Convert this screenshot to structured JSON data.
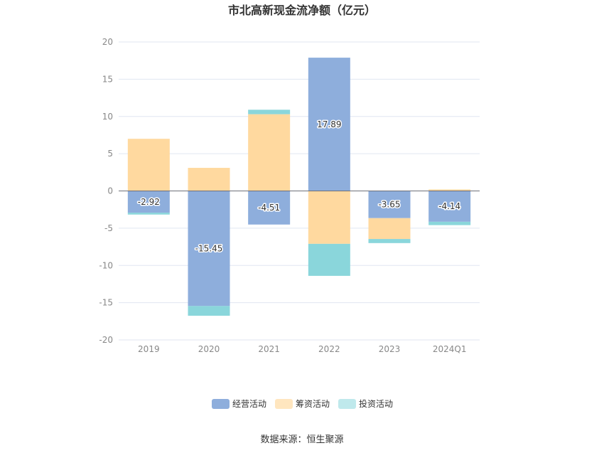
{
  "chart_data": {
    "type": "bar",
    "stacked": true,
    "title": "市北高新现金流净额（亿元）",
    "categories": [
      "2019",
      "2020",
      "2021",
      "2022",
      "2023",
      "2024Q1"
    ],
    "series": [
      {
        "name": "经营活动",
        "color": "#8eaedc",
        "values": [
          -2.92,
          -15.45,
          -4.51,
          17.89,
          -3.65,
          -4.14
        ],
        "show_labels": true
      },
      {
        "name": "筹资活动",
        "color": "#ffd99f",
        "values": [
          7.0,
          3.1,
          10.3,
          -7.1,
          -2.8,
          0.2
        ],
        "show_labels": false
      },
      {
        "name": "投资活动",
        "color": "#8ad6db",
        "values": [
          -0.25,
          -1.3,
          0.6,
          -4.3,
          -0.55,
          -0.45
        ],
        "show_labels": false
      }
    ],
    "ylim": [
      -20,
      20
    ],
    "yticks": [
      20,
      15,
      10,
      5,
      0,
      -5,
      -10,
      -15,
      -20
    ],
    "grid": true,
    "legend_position": "bottom"
  },
  "legend": {
    "items": [
      {
        "label": "经营活动",
        "color": "#8eaedc"
      },
      {
        "label": "筹资活动",
        "color": "#ffe6bf"
      },
      {
        "label": "投资活动",
        "color": "#bfe9ec"
      }
    ]
  },
  "source": "数据来源：恒生聚源"
}
